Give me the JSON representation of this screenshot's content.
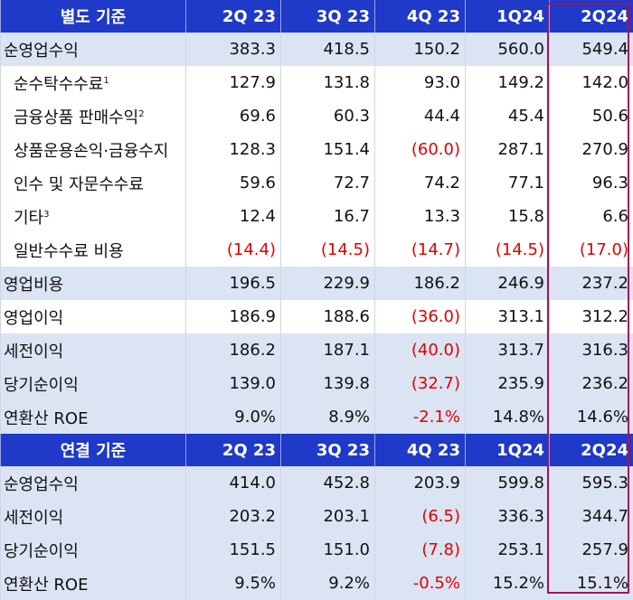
{
  "highlight_color": "#a0145a",
  "header_color": "#1f39c8",
  "band_color": "#dbe4f2",
  "negative_color": "#e10000",
  "columns": [
    "2Q 23",
    "3Q 23",
    "4Q 23",
    "1Q24",
    "2Q24"
  ],
  "separate": {
    "title": "별도 기준",
    "rows": [
      {
        "label": "순영업수익",
        "sup": "",
        "values": [
          "383.3",
          "418.5",
          "150.2",
          "560.0",
          "549.4"
        ]
      },
      {
        "label": "순수탁수수료",
        "sup": "1",
        "values": [
          "127.9",
          "131.8",
          "93.0",
          "149.2",
          "142.0"
        ]
      },
      {
        "label": "금융상품 판매수익",
        "sup": "2",
        "values": [
          "69.6",
          "60.3",
          "44.4",
          "45.4",
          "50.6"
        ]
      },
      {
        "label": "상품운용손익·금융수지",
        "sup": "",
        "values": [
          "128.3",
          "151.4",
          "(60.0)",
          "287.1",
          "270.9"
        ]
      },
      {
        "label": "인수 및 자문수수료",
        "sup": "",
        "values": [
          "59.6",
          "72.7",
          "74.2",
          "77.1",
          "96.3"
        ]
      },
      {
        "label": "기타",
        "sup": "3",
        "values": [
          "12.4",
          "16.7",
          "13.3",
          "15.8",
          "6.6"
        ]
      },
      {
        "label": "일반수수료 비용",
        "sup": "",
        "values": [
          "(14.4)",
          "(14.5)",
          "(14.7)",
          "(14.5)",
          "(17.0)"
        ]
      },
      {
        "label": "영업비용",
        "sup": "",
        "values": [
          "196.5",
          "229.9",
          "186.2",
          "246.9",
          "237.2"
        ]
      },
      {
        "label": "영업이익",
        "sup": "",
        "values": [
          "186.9",
          "188.6",
          "(36.0)",
          "313.1",
          "312.2"
        ]
      },
      {
        "label": "세전이익",
        "sup": "",
        "values": [
          "186.2",
          "187.1",
          "(40.0)",
          "313.7",
          "316.3"
        ]
      },
      {
        "label": "당기순이익",
        "sup": "",
        "values": [
          "139.0",
          "139.8",
          "(32.7)",
          "235.9",
          "236.2"
        ]
      },
      {
        "label": "연환산 ROE",
        "sup": "",
        "values": [
          "9.0%",
          "8.9%",
          "-2.1%",
          "14.8%",
          "14.6%"
        ]
      }
    ]
  },
  "consolidated": {
    "title": "연결 기준",
    "rows": [
      {
        "label": "순영업수익",
        "sup": "",
        "values": [
          "414.0",
          "452.8",
          "203.9",
          "599.8",
          "595.3"
        ]
      },
      {
        "label": "세전이익",
        "sup": "",
        "values": [
          "203.2",
          "203.1",
          "(6.5)",
          "336.3",
          "344.7"
        ]
      },
      {
        "label": "당기순이익",
        "sup": "",
        "values": [
          "151.5",
          "151.0",
          "(7.8)",
          "253.1",
          "257.9"
        ]
      },
      {
        "label": "연환산 ROE",
        "sup": "",
        "values": [
          "9.5%",
          "9.2%",
          "-0.5%",
          "15.2%",
          "15.1%"
        ]
      }
    ]
  }
}
